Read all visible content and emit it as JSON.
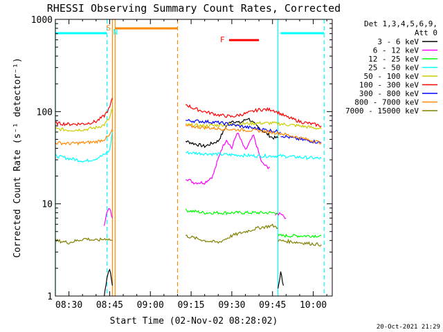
{
  "chart_data": {
    "type": "line",
    "title": "RHESSI Observing Summary Count Rates, Corrected",
    "xlabel": "Start Time (02-Nov-02 08:28:02)",
    "ylabel": "Corrected Count Rate (s⁻¹ detector⁻¹)",
    "yscale": "log",
    "ylim": [
      1,
      1000
    ],
    "xlim": [
      "08:25",
      "10:07"
    ],
    "x_ticks": [
      "08:30",
      "08:45",
      "09:00",
      "09:15",
      "09:30",
      "09:45",
      "10:00"
    ],
    "y_ticks": [
      "1",
      "10",
      "100",
      "1000"
    ],
    "grid": false,
    "legend_position": "right",
    "legend_header": [
      "Det 1,3,4,5,6,9,",
      "Att 0"
    ],
    "footer": "20-Oct-2021 21:29",
    "series": [
      {
        "name": "3 - 6 keV",
        "color": "#000000",
        "segments": [
          {
            "x": [
              "08:43",
              "08:44",
              "08:45",
              "08:46"
            ],
            "y": [
              1.0,
              1.6,
              2.0,
              1.3
            ]
          },
          {
            "x": [
              "09:13",
              "09:16",
              "09:20",
              "09:25",
              "09:28",
              "09:30",
              "09:33",
              "09:36",
              "09:39",
              "09:42",
              "09:45",
              "09:47"
            ],
            "y": [
              48,
              45,
              42,
              48,
              70,
              80,
              75,
              85,
              70,
              60,
              52,
              52
            ]
          },
          {
            "x": [
              "09:47",
              "09:48",
              "09:49"
            ],
            "y": [
              1.2,
              1.8,
              1.3
            ]
          }
        ]
      },
      {
        "name": "6 - 12 keV",
        "color": "#ff00ff",
        "segments": [
          {
            "x": [
              "08:43",
              "08:44",
              "08:45",
              "08:46"
            ],
            "y": [
              6.0,
              8.0,
              9.0,
              7.0
            ]
          },
          {
            "x": [
              "09:13",
              "09:16",
              "09:20",
              "09:23",
              "09:26",
              "09:28",
              "09:30",
              "09:32",
              "09:35",
              "09:38",
              "09:41",
              "09:43",
              "09:44"
            ],
            "y": [
              19,
              17,
              17,
              20,
              38,
              50,
              40,
              60,
              38,
              55,
              28,
              25,
              25
            ]
          },
          {
            "x": [
              "09:46",
              "09:48",
              "09:50"
            ],
            "y": [
              7.5,
              8.0,
              7.0
            ]
          }
        ]
      },
      {
        "name": "12 - 25 keV",
        "color": "#00ff00",
        "segments": [
          {
            "x": [
              "09:13",
              "09:20",
              "09:30",
              "09:40",
              "09:47"
            ],
            "y": [
              8.5,
              8.0,
              8.0,
              8.0,
              8.0
            ]
          },
          {
            "x": [
              "09:47",
              "09:55",
              "10:03"
            ],
            "y": [
              4.5,
              4.5,
              4.5
            ]
          }
        ]
      },
      {
        "name": "25 - 50 keV",
        "color": "#00ffff",
        "segments": [
          {
            "x": [
              "08:25",
              "08:30",
              "08:36",
              "08:40",
              "08:43",
              "08:45",
              "08:46"
            ],
            "y": [
              33,
              31,
              29,
              31,
              34,
              38,
              60
            ]
          },
          {
            "x": [
              "09:13",
              "09:20",
              "09:30",
              "09:40",
              "09:48",
              "09:55",
              "10:03"
            ],
            "y": [
              36,
              35,
              34,
              33,
              33,
              32,
              31
            ]
          }
        ]
      },
      {
        "name": "50 - 100 keV",
        "color": "#cccc00",
        "segments": [
          {
            "x": [
              "08:25",
              "08:30",
              "08:36",
              "08:40",
              "08:43",
              "08:45",
              "08:46"
            ],
            "y": [
              65,
              63,
              64,
              67,
              72,
              85,
              110
            ]
          },
          {
            "x": [
              "09:13",
              "09:20",
              "09:30",
              "09:40",
              "09:45",
              "09:55",
              "10:03"
            ],
            "y": [
              72,
              70,
              73,
              75,
              75,
              70,
              65
            ]
          }
        ]
      },
      {
        "name": "100 - 300 keV",
        "color": "#ff0000",
        "segments": [
          {
            "x": [
              "08:25",
              "08:30",
              "08:36",
              "08:40",
              "08:43",
              "08:45",
              "08:46"
            ],
            "y": [
              75,
              73,
              74,
              78,
              90,
              110,
              140
            ]
          },
          {
            "x": [
              "09:13",
              "09:16",
              "09:20",
              "09:25",
              "09:30",
              "09:35",
              "09:40",
              "09:45",
              "09:50",
              "09:55",
              "10:03"
            ],
            "y": [
              120,
              108,
              100,
              92,
              88,
              95,
              105,
              105,
              88,
              78,
              70
            ]
          }
        ]
      },
      {
        "name": "300 - 800 keV",
        "color": "#0000ff",
        "segments": [
          {
            "x": [
              "09:13",
              "09:20",
              "09:25",
              "09:30",
              "09:35",
              "09:40",
              "09:45",
              "09:48"
            ],
            "y": [
              80,
              78,
              76,
              72,
              68,
              65,
              62,
              60
            ]
          },
          {
            "x": [
              "09:48",
              "09:55",
              "10:03"
            ],
            "y": [
              55,
              50,
              46
            ]
          }
        ]
      },
      {
        "name": "800 - 7000 keV",
        "color": "#ff8800",
        "segments": [
          {
            "x": [
              "08:25",
              "08:30",
              "08:36",
              "08:40",
              "08:43",
              "08:45",
              "08:46"
            ],
            "y": [
              46,
              45,
              46,
              47,
              50,
              55,
              65
            ]
          },
          {
            "x": [
              "09:13",
              "09:20",
              "09:30",
              "09:40",
              "09:48",
              "09:55",
              "10:03"
            ],
            "y": [
              70,
              67,
              64,
              62,
              58,
              52,
              46
            ]
          }
        ]
      },
      {
        "name": "7000 - 15000 keV",
        "color": "#808000",
        "segments": [
          {
            "x": [
              "08:25",
              "08:30",
              "08:36",
              "08:40",
              "08:44",
              "08:46"
            ],
            "y": [
              4.0,
              3.8,
              4.2,
              4.0,
              4.2,
              4.0
            ]
          },
          {
            "x": [
              "09:13",
              "09:20",
              "09:25",
              "09:30",
              "09:35",
              "09:40",
              "09:45",
              "09:47"
            ],
            "y": [
              4.5,
              4.0,
              3.8,
              4.5,
              5.0,
              5.5,
              5.8,
              5.5
            ]
          },
          {
            "x": [
              "09:47",
              "09:55",
              "10:03"
            ],
            "y": [
              4.0,
              3.8,
              3.6
            ]
          }
        ]
      }
    ],
    "annotations": {
      "night_start_S": {
        "label": "S",
        "color": "#ff8800",
        "x": "08:46"
      },
      "saa_N": {
        "label": "N",
        "color": "#00ffff",
        "x": "08:46"
      },
      "flare_F": {
        "label": "F",
        "color": "#ff0000",
        "x_start": "09:29",
        "x_end": "09:40"
      },
      "cyan_bars": [
        {
          "x_start": "08:25",
          "x_end": "08:44",
          "color": "#00ffff"
        },
        {
          "x_start": "09:48",
          "x_end": "10:04",
          "color": "#00ffff"
        }
      ],
      "orange_bar": {
        "x_start": "08:47",
        "x_end": "09:10",
        "color": "#ff8800"
      },
      "vertical_lines": [
        {
          "x": "08:25",
          "color": "#00ffff",
          "style": "solid"
        },
        {
          "x": "08:44",
          "color": "#00ffff",
          "style": "dashed"
        },
        {
          "x": "08:46",
          "color": "#ff8800",
          "style": "solid"
        },
        {
          "x": "08:47",
          "color": "#ff8800",
          "style": "solid"
        },
        {
          "x": "09:10",
          "color": "#ff8800",
          "style": "dashed"
        },
        {
          "x": "09:47",
          "color": "#00ffff",
          "style": "solid"
        },
        {
          "x": "10:04",
          "color": "#00ffff",
          "style": "dashed"
        }
      ]
    }
  }
}
